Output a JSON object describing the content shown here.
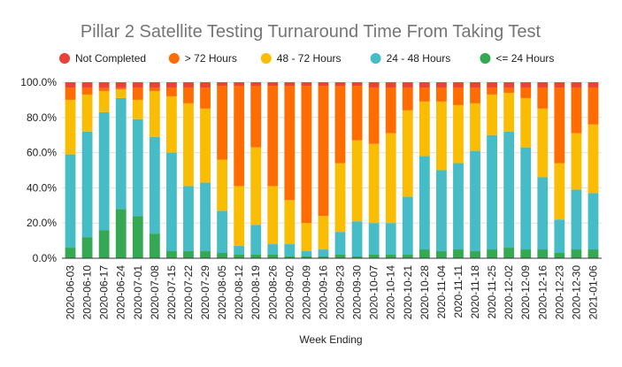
{
  "chart_data": {
    "type": "bar",
    "stacked": true,
    "percent": true,
    "title": "Pillar 2 Satellite Testing Turnaround Time From Taking Test",
    "xlabel": "Week Ending",
    "ylabel": "",
    "ylim": [
      0,
      100
    ],
    "yticks": [
      "0.0%",
      "20.0%",
      "40.0%",
      "60.0%",
      "80.0%",
      "100.0%"
    ],
    "ytick_values": [
      0,
      20,
      40,
      60,
      80,
      100
    ],
    "grid": true,
    "legend_position": "top",
    "categories": [
      "2020-06-03",
      "2020-06-10",
      "2020-06-17",
      "2020-06-24",
      "2020-07-01",
      "2020-07-08",
      "2020-07-15",
      "2020-07-22",
      "2020-07-29",
      "2020-08-05",
      "2020-08-12",
      "2020-08-19",
      "2020-08-26",
      "2020-09-02",
      "2020-09-09",
      "2020-09-16",
      "2020-09-23",
      "2020-09-30",
      "2020-10-07",
      "2020-10-14",
      "2020-10-21",
      "2020-10-28",
      "2020-11-04",
      "2020-11-11",
      "2020-11-18",
      "2020-11-25",
      "2020-12-02",
      "2020-12-09",
      "2020-12-16",
      "2020-12-23",
      "2020-12-30",
      "2021-01-06"
    ],
    "legend_order": [
      4,
      3,
      2,
      1,
      0
    ],
    "series": [
      {
        "name": "<= 24 Hours",
        "color": "#34a853",
        "values": [
          6,
          12,
          16,
          28,
          24,
          14,
          4,
          4,
          4,
          3,
          2,
          2,
          2,
          1,
          1,
          1,
          2,
          1,
          2,
          2,
          2,
          5,
          4,
          5,
          4,
          5,
          6,
          5,
          5,
          3,
          5,
          5
        ]
      },
      {
        "name": "24 - 48 Hours",
        "color": "#46bdc6",
        "values": [
          53,
          60,
          67,
          63,
          55,
          55,
          56,
          37,
          39,
          24,
          5,
          17,
          6,
          7,
          3,
          4,
          13,
          20,
          18,
          18,
          33,
          53,
          46,
          49,
          57,
          65,
          66,
          58,
          41,
          19,
          34,
          32
        ]
      },
      {
        "name": "48 - 72 Hours",
        "color": "#fbbc04",
        "values": [
          31,
          21,
          12,
          5,
          11,
          26,
          32,
          47,
          42,
          29,
          34,
          44,
          33,
          25,
          16,
          19,
          39,
          46,
          45,
          51,
          49,
          31,
          39,
          33,
          27,
          23,
          22,
          28,
          39,
          32,
          32,
          39
        ]
      },
      {
        "name": "> 72 Hours",
        "color": "#ff6d01",
        "values": [
          7,
          4,
          2,
          1,
          7,
          2,
          5,
          9,
          12,
          42,
          57,
          35,
          57,
          65,
          78,
          74,
          44,
          31,
          32,
          26,
          13,
          8,
          8,
          10,
          9,
          4,
          3,
          6,
          12,
          43,
          26,
          21
        ]
      },
      {
        "name": "Not Completed",
        "color": "#ea4335",
        "values": [
          3,
          3,
          3,
          3,
          3,
          3,
          3,
          3,
          3,
          2,
          2,
          2,
          2,
          2,
          2,
          2,
          2,
          2,
          3,
          3,
          3,
          3,
          3,
          3,
          3,
          3,
          3,
          3,
          3,
          3,
          3,
          3
        ]
      }
    ]
  }
}
